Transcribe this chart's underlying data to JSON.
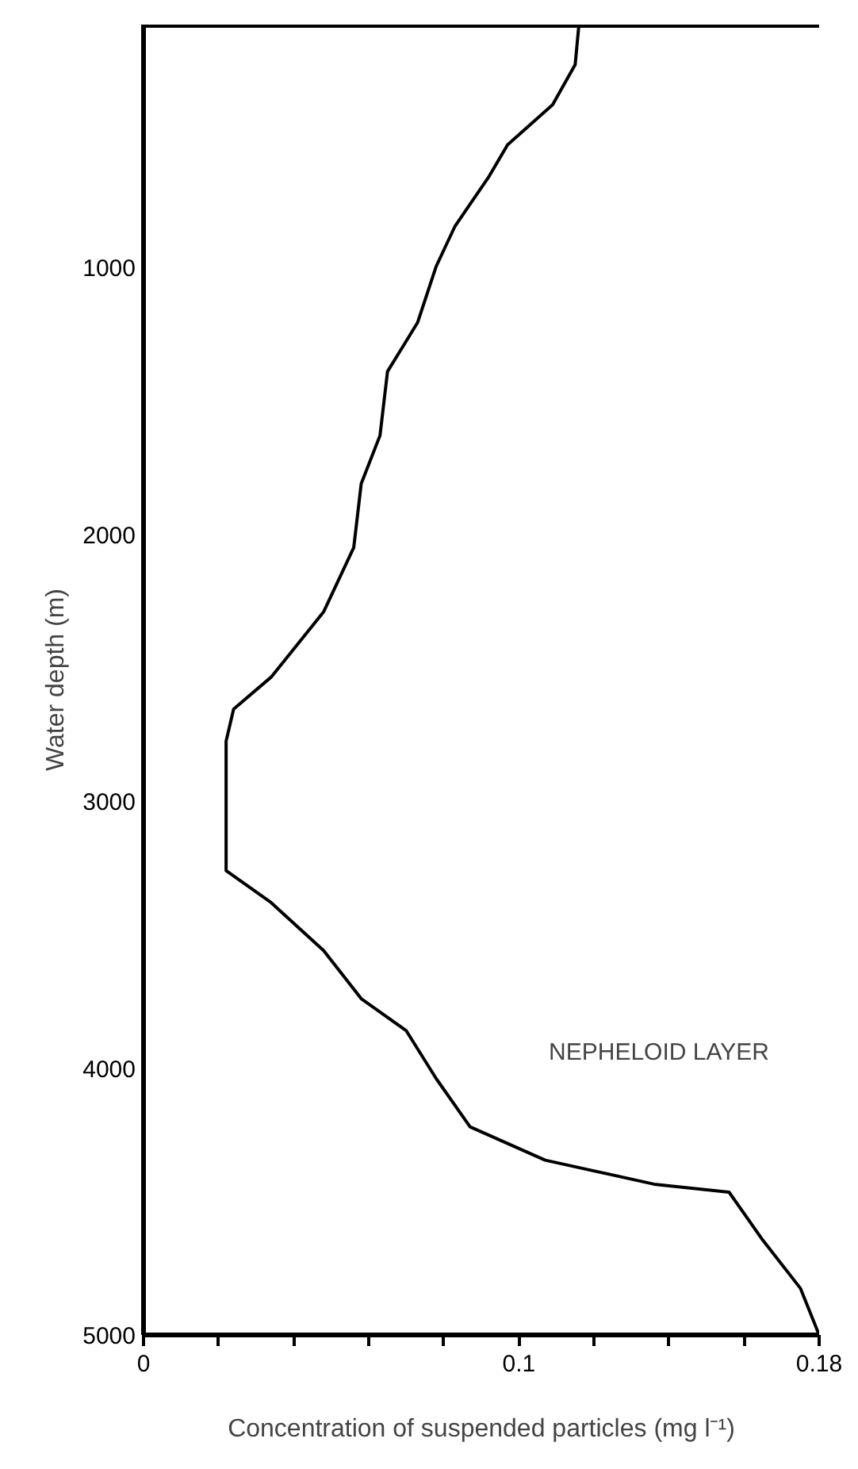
{
  "chart_data": {
    "type": "line",
    "xlabel": "Concentration of suspended particles (mg l⁻¹)",
    "ylabel": "Water depth (m)",
    "xlim": [
      0,
      0.18
    ],
    "ylim": [
      5000,
      90
    ],
    "xticks": [
      0,
      {
        "value": 0.02,
        "label": null
      },
      {
        "value": 0.04,
        "label": null
      },
      {
        "value": 0.06,
        "label": null
      },
      {
        "value": 0.08,
        "label": null
      },
      0.1,
      {
        "value": 0.12,
        "label": null
      },
      {
        "value": 0.14,
        "label": null
      },
      {
        "value": 0.16,
        "label": null
      },
      0.18
    ],
    "yticks": [
      1000,
      2000,
      3000,
      4000,
      5000
    ],
    "grid": false,
    "marker": "none",
    "line_style": "solid",
    "series": [
      {
        "color": "#000000",
        "x": [
          0.116,
          0.115,
          0.109,
          0.097,
          0.092,
          0.083,
          0.078,
          0.073,
          0.065,
          0.063,
          0.058,
          0.056,
          0.048,
          0.034,
          0.024,
          0.022,
          0.022,
          0.022,
          0.034,
          0.048,
          0.058,
          0.07,
          0.078,
          0.087,
          0.107,
          0.136,
          0.156,
          0.165,
          0.175,
          0.18
        ],
        "values": [
          90,
          240,
          390,
          540,
          660,
          845,
          995,
          1207,
          1390,
          1630,
          1810,
          2050,
          2290,
          2535,
          2655,
          2775,
          3015,
          3260,
          3380,
          3560,
          3740,
          3860,
          4040,
          4220,
          4345,
          4435,
          4465,
          4645,
          4825,
          5000
        ]
      }
    ],
    "annotations": [
      "NEPHELOID LAYER"
    ]
  }
}
